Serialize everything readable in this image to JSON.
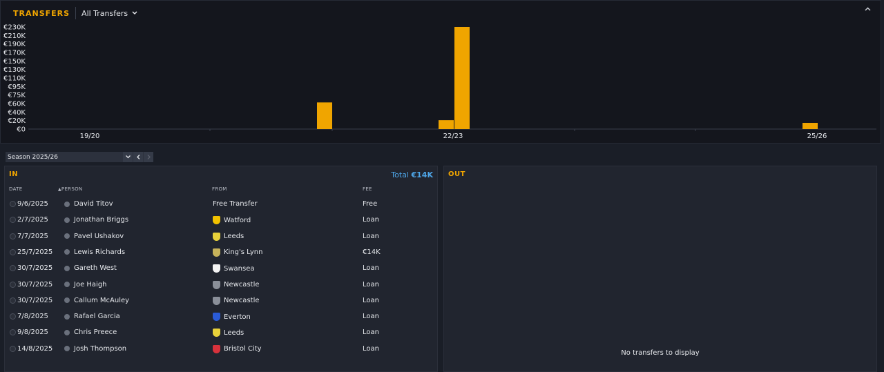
{
  "header": {
    "title": "TRANSFERS",
    "filter_label": "All Transfers"
  },
  "chart_data": {
    "type": "bar",
    "y_ticks": [
      "€230K",
      "€210K",
      "€190K",
      "€170K",
      "€150K",
      "€130K",
      "€110K",
      "€95K",
      "€75K",
      "€60K",
      "€40K",
      "€20K",
      "€0"
    ],
    "x_ticks": [
      "19/20",
      "22/23",
      "25/26"
    ],
    "ylim": [
      0,
      230000
    ],
    "bars": [
      {
        "period": "21/22",
        "value": 60000
      },
      {
        "period": "22/23",
        "value": 20000
      },
      {
        "period": "22/23",
        "value": 230000
      },
      {
        "period": "25/26",
        "value": 14000
      }
    ]
  },
  "season": {
    "label": "Season 2025/26"
  },
  "in_panel": {
    "title": "IN",
    "total_label": "Total",
    "total_value": "€14K",
    "columns": {
      "date": "DATE",
      "person": "PERSON",
      "from": "FROM",
      "fee": "FEE"
    },
    "rows": [
      {
        "date": "9/6/2025",
        "person": "David Titov",
        "from": "Free Transfer",
        "fee": "Free",
        "badge": "",
        "badge_color": ""
      },
      {
        "date": "2/7/2025",
        "person": "Jonathan Briggs",
        "from": "Watford",
        "fee": "Loan",
        "badge": "watford-badge-icon",
        "badge_color": "#f2c200"
      },
      {
        "date": "7/7/2025",
        "person": "Pavel Ushakov",
        "from": "Leeds",
        "fee": "Loan",
        "badge": "leeds-badge-icon",
        "badge_color": "#e8d13a"
      },
      {
        "date": "25/7/2025",
        "person": "Lewis Richards",
        "from": "King's Lynn",
        "fee": "€14K",
        "badge": "kings-lynn-badge-icon",
        "badge_color": "#c6b25a"
      },
      {
        "date": "30/7/2025",
        "person": "Gareth West",
        "from": "Swansea",
        "fee": "Loan",
        "badge": "swansea-badge-icon",
        "badge_color": "#f4f4f4"
      },
      {
        "date": "30/7/2025",
        "person": "Joe Haigh",
        "from": "Newcastle",
        "fee": "Loan",
        "badge": "newcastle-badge-icon",
        "badge_color": "#8a8f99"
      },
      {
        "date": "30/7/2025",
        "person": "Callum McAuley",
        "from": "Newcastle",
        "fee": "Loan",
        "badge": "newcastle-badge-icon",
        "badge_color": "#8a8f99"
      },
      {
        "date": "7/8/2025",
        "person": "Rafael Garcia",
        "from": "Everton",
        "fee": "Loan",
        "badge": "everton-badge-icon",
        "badge_color": "#2a5bd7"
      },
      {
        "date": "9/8/2025",
        "person": "Chris Preece",
        "from": "Leeds",
        "fee": "Loan",
        "badge": "leeds-badge-icon",
        "badge_color": "#e8d13a"
      },
      {
        "date": "14/8/2025",
        "person": "Josh Thompson",
        "from": "Bristol City",
        "fee": "Loan",
        "badge": "bristol-city-badge-icon",
        "badge_color": "#d8323c"
      }
    ]
  },
  "out_panel": {
    "title": "OUT",
    "empty_message": "No transfers to display"
  },
  "colors": {
    "accent": "#f0a500",
    "total": "#4ea6e8"
  }
}
